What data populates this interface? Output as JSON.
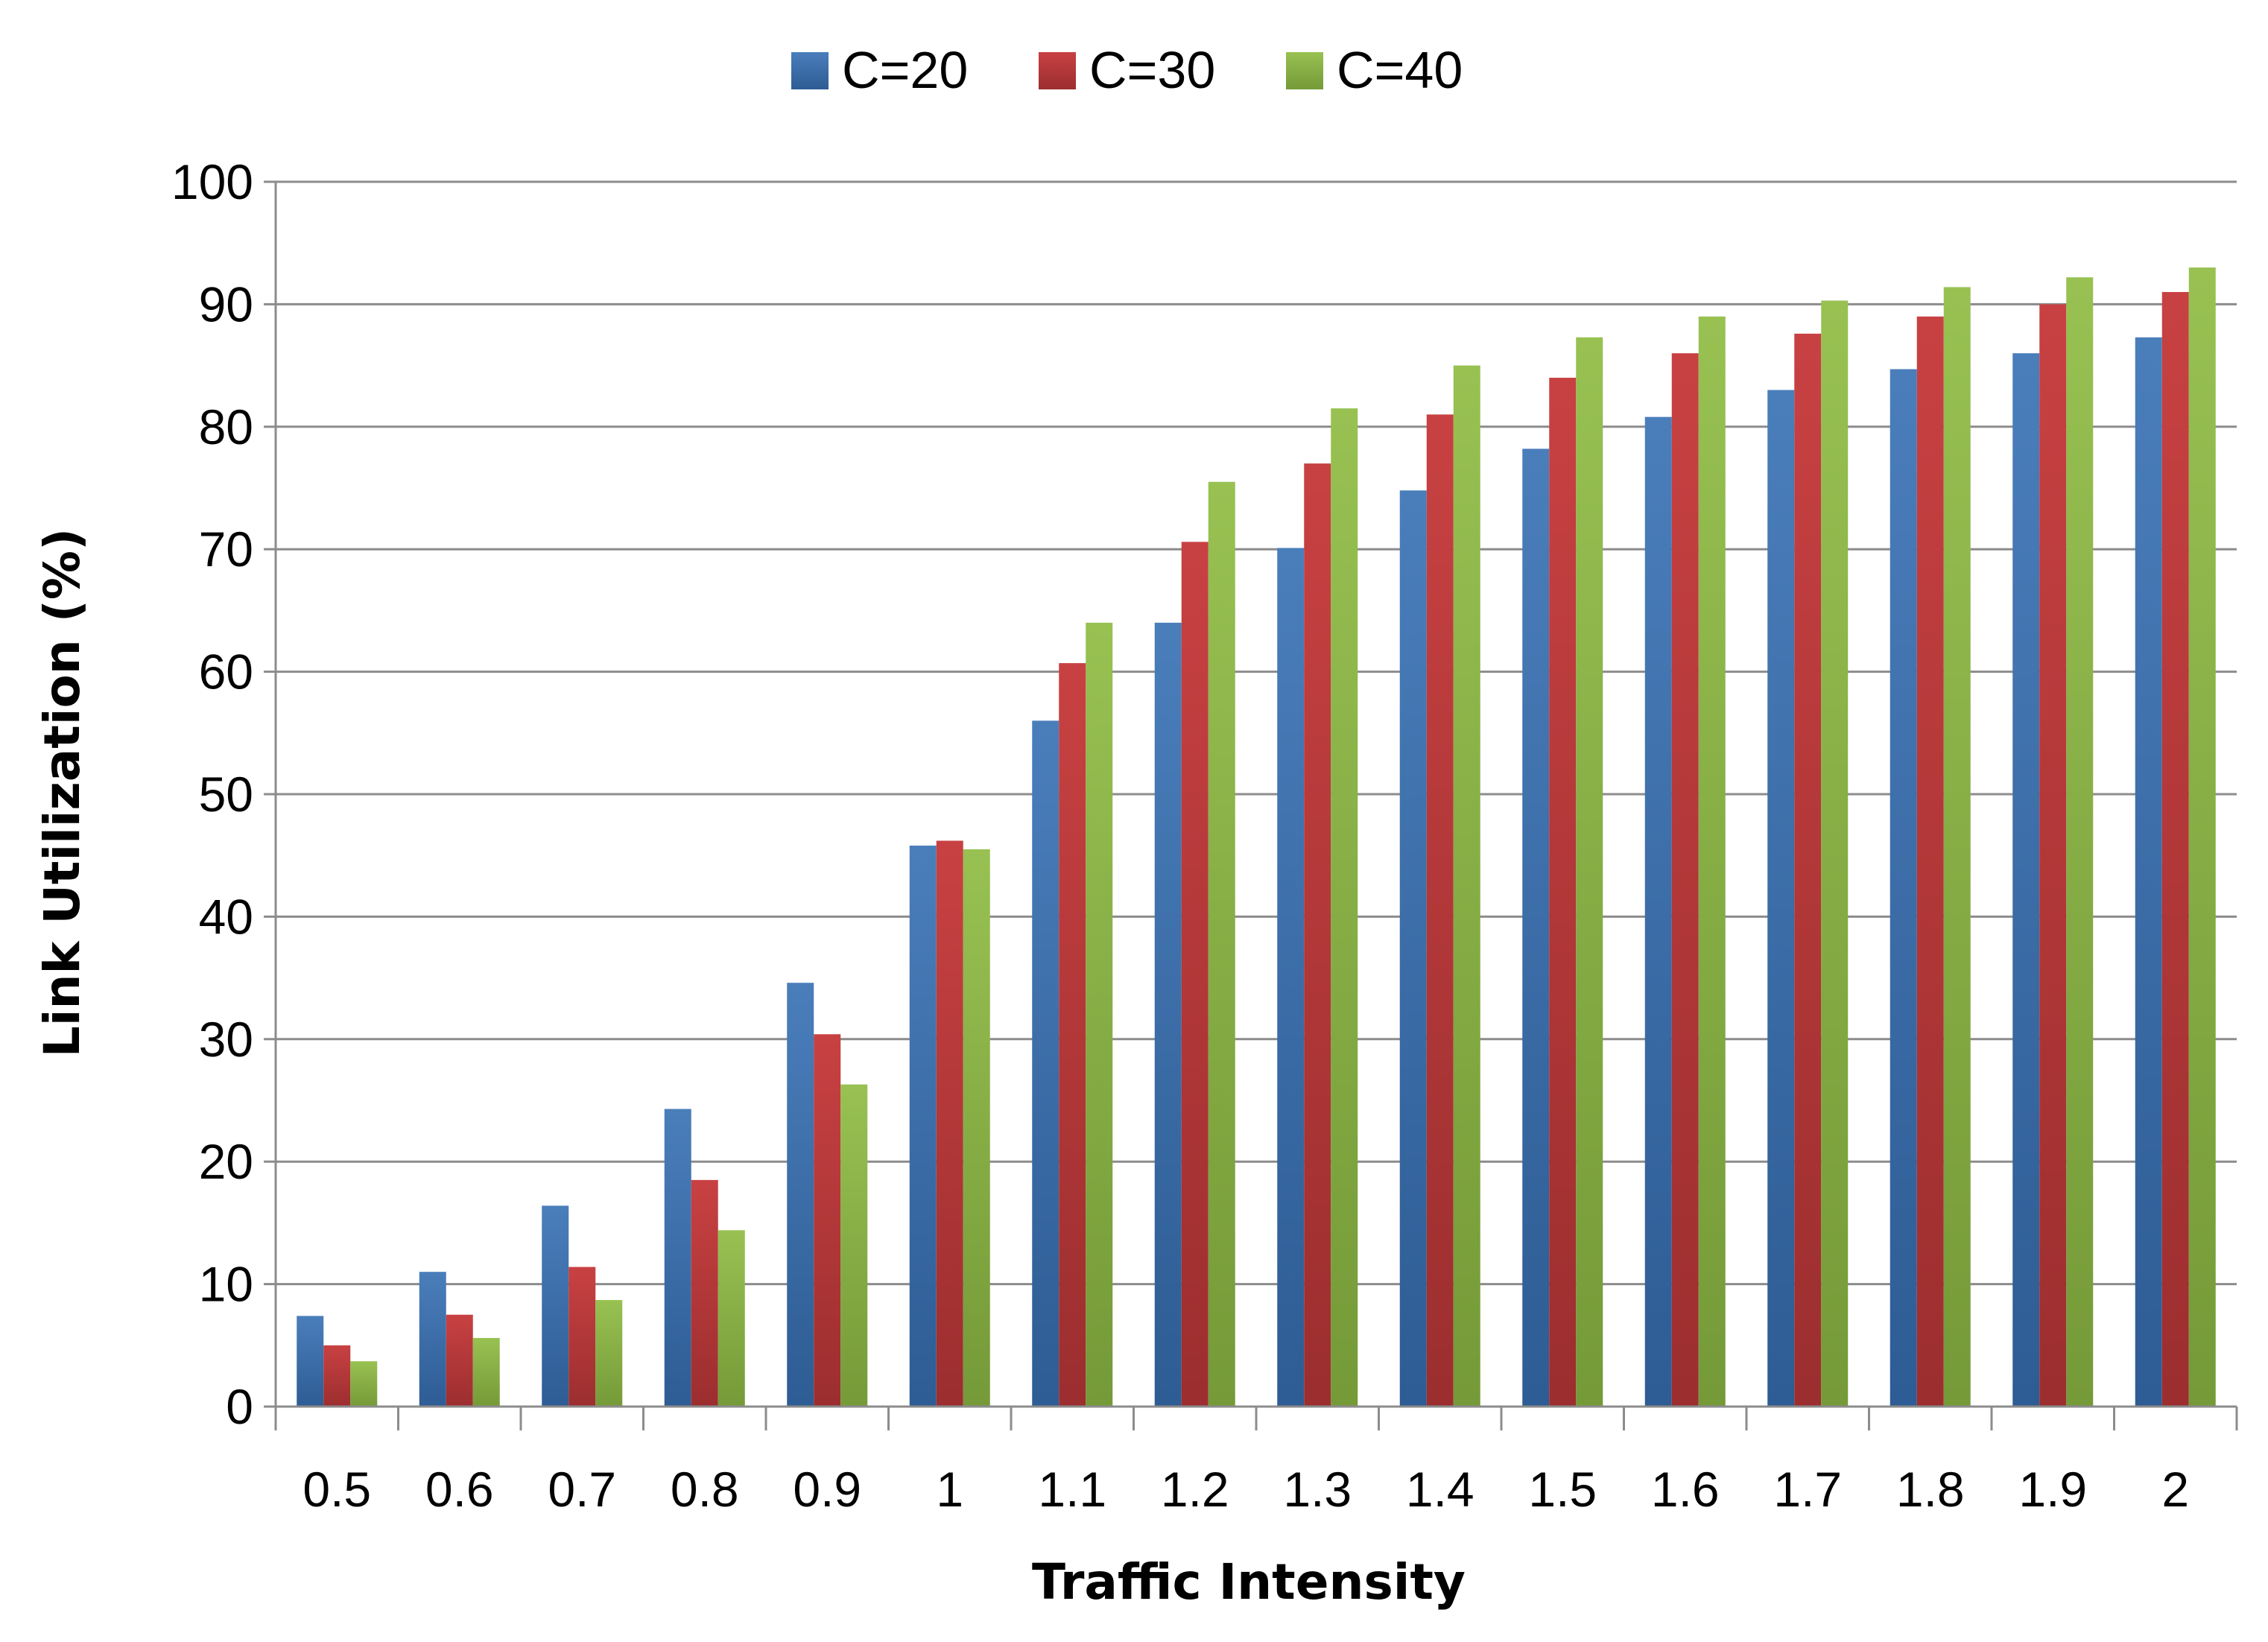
{
  "chart_data": {
    "type": "bar",
    "title": "",
    "xlabel": "Traffic Intensity",
    "ylabel": "Link Utilization (%)",
    "ylim": [
      0,
      100
    ],
    "yticks": [
      "0",
      "10",
      "20",
      "30",
      "40",
      "50",
      "60",
      "70",
      "80",
      "90",
      "100"
    ],
    "grid": true,
    "legend_position": "top-center",
    "categories": [
      "0.5",
      "0.6",
      "0.7",
      "0.8",
      "0.9",
      "1",
      "1.1",
      "1.2",
      "1.3",
      "1.4",
      "1.5",
      "1.6",
      "1.7",
      "1.8",
      "1.9",
      "2"
    ],
    "series": [
      {
        "name": "C=20",
        "color": "#4a7ebb",
        "color_dark": "#2e5c94",
        "values": [
          7.4,
          11.0,
          16.4,
          24.3,
          34.6,
          45.8,
          56.0,
          64.0,
          70.1,
          74.8,
          78.2,
          80.8,
          83.0,
          84.7,
          86.0,
          87.3
        ]
      },
      {
        "name": "C=30",
        "color": "#c84142",
        "color_dark": "#9c2e2f",
        "values": [
          5.0,
          7.5,
          11.4,
          18.5,
          30.4,
          46.2,
          60.7,
          70.6,
          77.0,
          81.0,
          84.0,
          86.0,
          87.6,
          89.0,
          90.0,
          91.0
        ]
      },
      {
        "name": "C=40",
        "color": "#98c152",
        "color_dark": "#759a38",
        "values": [
          3.7,
          5.6,
          8.7,
          14.4,
          26.3,
          45.5,
          64.0,
          75.5,
          81.5,
          85.0,
          87.3,
          89.0,
          90.3,
          91.4,
          92.2,
          93.0
        ]
      }
    ]
  }
}
